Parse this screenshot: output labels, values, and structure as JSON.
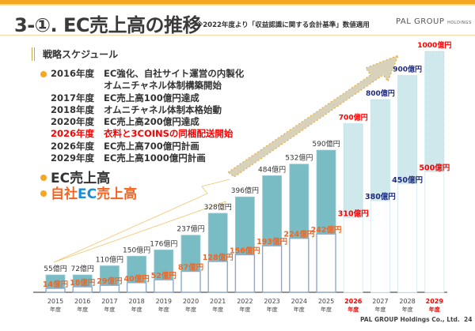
{
  "header": {
    "title": "3-①. EC売上高の推移",
    "note": "※2022年度より「収益認識に関する会計基準」数値適用",
    "logo": "PAL GROUP",
    "logo_sub": "HOLDINGS"
  },
  "schedule": {
    "heading": "戦略スケジュール",
    "items": [
      {
        "year": "2016年度",
        "text": "EC強化、自社サイト運営の内製化",
        "highlight": false
      },
      {
        "year": "",
        "text": "オムニチャネル体制構築開始",
        "highlight": false
      },
      {
        "year": "2017年度",
        "text": "EC売上高100億円達成",
        "highlight": false
      },
      {
        "year": "2018年度",
        "text": "オムニチャネル体制本格始動",
        "highlight": false
      },
      {
        "year": "2020年度",
        "text": "EC売上高200億円達成",
        "highlight": false
      },
      {
        "year": "2026年度",
        "text": "衣料と3COINSの同梱配送開始",
        "highlight": true
      },
      {
        "year": "2026年度",
        "text": "EC売上高700億円計画",
        "highlight": false
      },
      {
        "year": "2029年度",
        "text": "EC売上高1000億円計画",
        "highlight": false
      }
    ]
  },
  "legend": {
    "ec": "EC売上高",
    "own_prefix": "自社",
    "own_ec": "EC",
    "own_suffix": "売上高"
  },
  "colors": {
    "accent": "#f5a623",
    "ec_bar": "#79bcc4",
    "plan_bar": "#cfe8ec",
    "own_label": "#f26522",
    "plan_label": "#1f2a80",
    "highlight": "#ff0000"
  },
  "chart_data": {
    "type": "bar",
    "categories": [
      "2015",
      "2016",
      "2017",
      "2018",
      "2019",
      "2020",
      "2021",
      "2022",
      "2023",
      "2024",
      "2025",
      "2026",
      "2027",
      "2028",
      "2029"
    ],
    "category_suffix": "年度",
    "highlight_categories": [
      "2026",
      "2029"
    ],
    "unit": "億円",
    "series": [
      {
        "name": "EC売上高",
        "values": [
          55,
          72,
          110,
          150,
          176,
          237,
          328,
          396,
          484,
          532,
          590,
          700,
          800,
          900,
          1000
        ]
      },
      {
        "name": "自社EC売上高",
        "values": [
          14,
          18,
          29,
          40,
          52,
          87,
          128,
          156,
          193,
          224,
          242,
          310,
          380,
          450,
          500
        ]
      }
    ],
    "plan_from": "2026",
    "ylim": [
      0,
      1000
    ]
  },
  "footer": {
    "company": "PAL GROUP Holdings Co., Ltd.",
    "page": "24"
  }
}
